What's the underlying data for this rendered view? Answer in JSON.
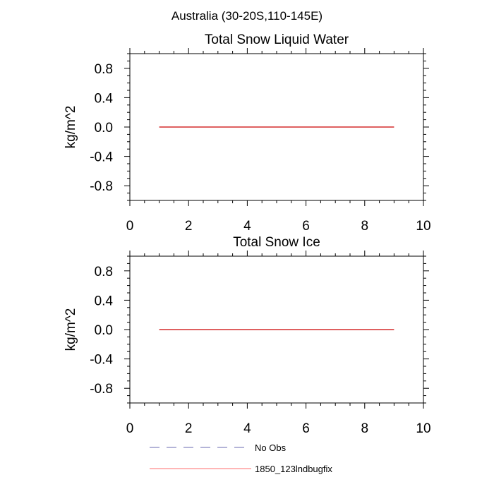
{
  "figure": {
    "title": "Australia (30-20S,110-145E)"
  },
  "legend": {
    "entries": [
      {
        "label": "No Obs",
        "color": "#6a6ab0",
        "dash": "dashed"
      },
      {
        "label": "1850_123lndbugfix",
        "color": "#ff6e6e",
        "dash": "solid"
      }
    ]
  },
  "chart_data": [
    {
      "type": "line",
      "title": "Total Snow Liquid Water",
      "xlabel": "",
      "ylabel": "kg/m^2",
      "xlim": [
        0,
        10
      ],
      "ylim": [
        -1,
        1
      ],
      "x_ticks": [
        "0",
        "2",
        "4",
        "6",
        "8",
        "10"
      ],
      "y_ticks": [
        "0.8",
        "0.4",
        "0.0",
        "-0.4",
        "-0.8"
      ],
      "grid": false,
      "series": [
        {
          "name": "1850_123lndbugfix",
          "color": "#cc0000",
          "x": [
            1,
            2,
            3,
            4,
            5,
            6,
            7,
            8,
            9
          ],
          "y": [
            0,
            0,
            0,
            0,
            0,
            0,
            0,
            0,
            0
          ]
        }
      ]
    },
    {
      "type": "line",
      "title": "Total Snow Ice",
      "xlabel": "",
      "ylabel": "kg/m^2",
      "xlim": [
        0,
        10
      ],
      "ylim": [
        -1,
        1
      ],
      "x_ticks": [
        "0",
        "2",
        "4",
        "6",
        "8",
        "10"
      ],
      "y_ticks": [
        "0.8",
        "0.4",
        "0.0",
        "-0.4",
        "-0.8"
      ],
      "grid": false,
      "series": [
        {
          "name": "1850_123lndbugfix",
          "color": "#cc0000",
          "x": [
            1,
            2,
            3,
            4,
            5,
            6,
            7,
            8,
            9
          ],
          "y": [
            0,
            0,
            0,
            0,
            0,
            0,
            0,
            0,
            0
          ]
        }
      ]
    }
  ]
}
